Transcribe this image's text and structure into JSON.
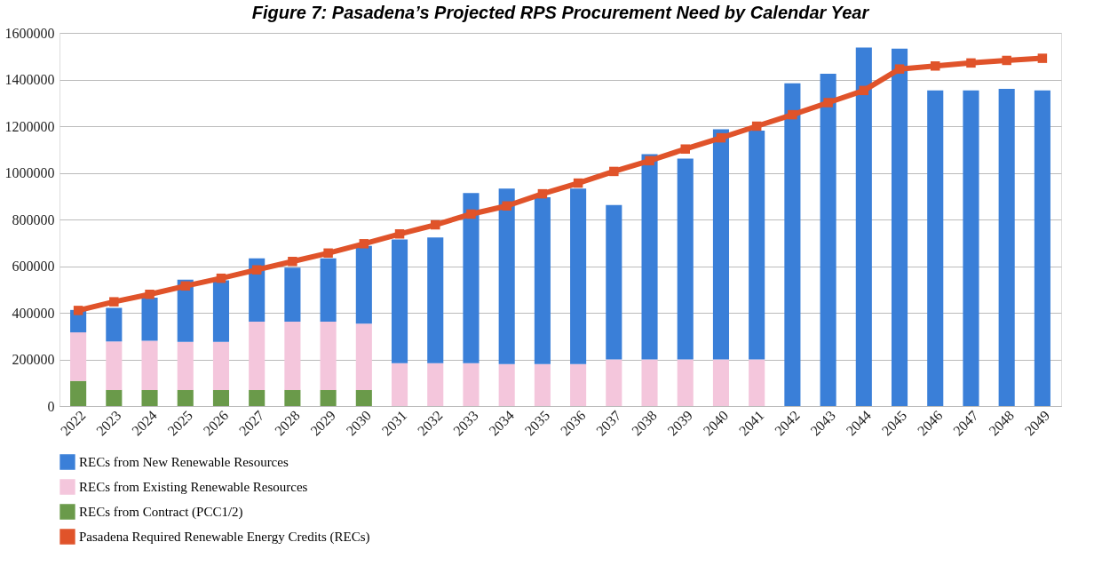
{
  "chart_data": {
    "type": "bar",
    "stacked": true,
    "title": "Figure 7: Pasadena’s Projected RPS Procurement Need by Calendar Year",
    "categories": [
      "2022",
      "2023",
      "2024",
      "2025",
      "2026",
      "2027",
      "2028",
      "2029",
      "2030",
      "2031",
      "2032",
      "2033",
      "2034",
      "2035",
      "2036",
      "2037",
      "2038",
      "2039",
      "2040",
      "2041",
      "2042",
      "2043",
      "2044",
      "2045",
      "2046",
      "2047",
      "2048",
      "2049"
    ],
    "series": [
      {
        "name": "RECs from Contract (PCC1/2)",
        "color": "#6a9a4a",
        "values": [
          108000,
          69000,
          69000,
          69000,
          69000,
          69000,
          69000,
          69000,
          69000,
          null,
          null,
          null,
          null,
          null,
          null,
          null,
          null,
          null,
          null,
          null,
          null,
          null,
          null,
          null,
          null,
          null,
          null,
          null
        ]
      },
      {
        "name": "RECs from Existing Renewable Resources",
        "color": "#f4c6dc",
        "values": [
          208000,
          208000,
          211000,
          206000,
          206000,
          293000,
          293000,
          293000,
          284000,
          184000,
          184000,
          184000,
          180000,
          180000,
          180000,
          200000,
          200000,
          200000,
          200000,
          200000,
          null,
          null,
          null,
          null,
          null,
          null,
          null,
          null
        ]
      },
      {
        "name": "RECs from New Renewable Resources",
        "color": "#3a7fd8",
        "values": [
          96000,
          144000,
          185000,
          267000,
          264000,
          271000,
          231000,
          271000,
          334000,
          530000,
          539000,
          729000,
          752000,
          715000,
          752000,
          662000,
          880000,
          861000,
          987000,
          981000,
          1384000,
          1425000,
          1537000,
          1532000,
          1353000,
          1353000,
          1360000,
          1353000
        ]
      },
      {
        "name": "Pasadena Required Renewable Energy Credits (RECs)",
        "type": "line",
        "color": "#e0532a",
        "values": [
          410000,
          447000,
          479000,
          515000,
          548000,
          584000,
          620000,
          656000,
          696000,
          738000,
          777000,
          823000,
          858000,
          910000,
          956000,
          1006000,
          1052000,
          1102000,
          1150000,
          1200000,
          1249000,
          1301000,
          1353000,
          1445000,
          1458000,
          1471000,
          1482000,
          1491000
        ]
      }
    ],
    "ylim": [
      0,
      1600000
    ],
    "yticks": [
      0,
      200000,
      400000,
      600000,
      800000,
      1000000,
      1200000,
      1400000,
      1600000
    ],
    "grid": "y",
    "legend": "bottom",
    "marker": "square",
    "line_style": "solid"
  }
}
